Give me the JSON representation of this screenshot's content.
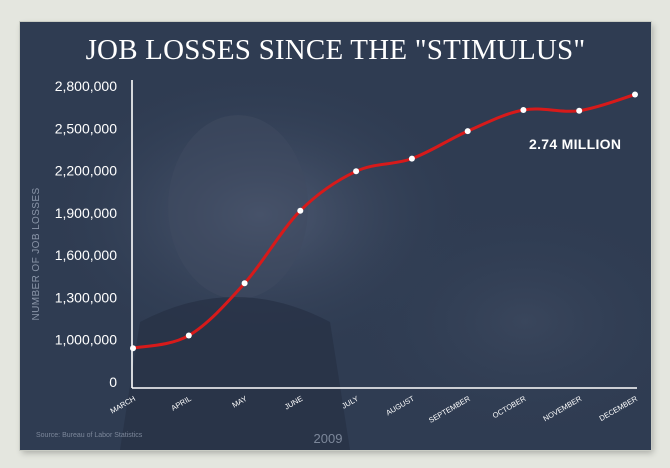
{
  "title": "JOB LOSSES SINCE THE \"STIMULUS\"",
  "source": "Source: Bureau of Labor Statistics",
  "colors": {
    "background": "#2f3c52",
    "line": "#d71a1a",
    "marker": "#ffffff",
    "text": "#ffffff"
  },
  "chart_data": {
    "type": "line",
    "xlabel": "2009",
    "ylabel": "NUMBER OF JOB LOSSES",
    "categories": [
      "MARCH",
      "APRIL",
      "MAY",
      "JUNE",
      "JULY",
      "AUGUST",
      "SEPTEMBER",
      "OCTOBER",
      "NOVEMBER",
      "DECEMBER"
    ],
    "y_tick_labels": [
      "0",
      "1,000,000",
      "1,300,000",
      "1,600,000",
      "1,900,000",
      "2,200,000",
      "2,500,000",
      "2,800,000"
    ],
    "y_ticks": [
      0,
      1000000,
      1300000,
      1600000,
      1900000,
      2200000,
      2500000,
      2800000
    ],
    "series": [
      {
        "values": [
          800000,
          1030000,
          1400000,
          1915000,
          2195000,
          2285000,
          2480000,
          2630000,
          2625000,
          2740000
        ]
      }
    ],
    "annotation": "2.74 MILLION",
    "grid": false,
    "legend": "none"
  }
}
